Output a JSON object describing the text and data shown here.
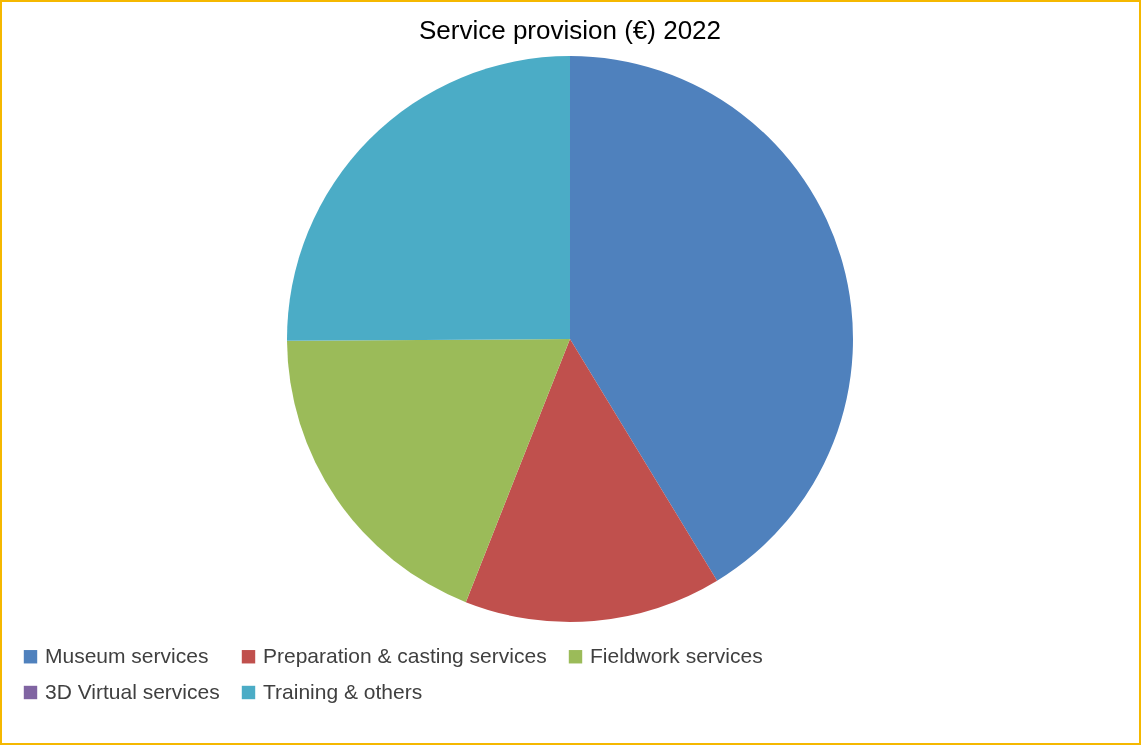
{
  "chart_data": {
    "type": "pie",
    "title": "Service provision (€) 2022",
    "categories": [
      "Museum services",
      "Preparation & casting services",
      "Fieldwork services",
      "3D Virtual services",
      "Training & others"
    ],
    "values": [
      41.3,
      14.7,
      18.9,
      0,
      25.1
    ],
    "colors": [
      "#4f81bd",
      "#c0504d",
      "#9bbb59",
      "#8064a2",
      "#4bacc6"
    ],
    "legend": "bottom"
  }
}
